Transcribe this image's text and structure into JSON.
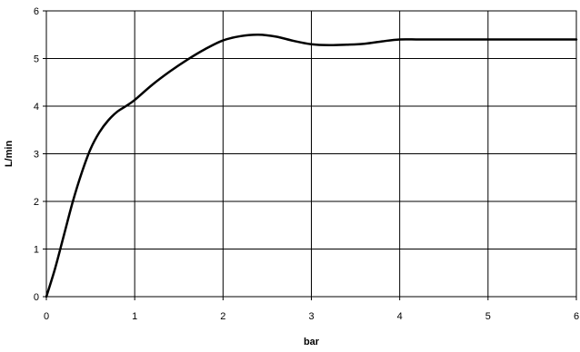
{
  "chart_data": {
    "type": "line",
    "title": "",
    "xlabel": "bar",
    "ylabel": "L/min",
    "xlim": [
      0,
      6
    ],
    "ylim": [
      0,
      6
    ],
    "xticks": [
      "0",
      "1",
      "2",
      "3",
      "4",
      "5",
      "6"
    ],
    "yticks": [
      "0",
      "1",
      "2",
      "3",
      "4",
      "5",
      "6"
    ],
    "grid": true,
    "legend": "none",
    "series": [
      {
        "color": "#000000",
        "x": [
          0,
          0.1,
          0.2,
          0.3,
          0.4,
          0.5,
          0.6,
          0.7,
          0.8,
          0.9,
          1.0,
          1.2,
          1.4,
          1.6,
          1.8,
          2.0,
          2.2,
          2.4,
          2.6,
          2.8,
          3.0,
          3.2,
          3.4,
          3.6,
          3.8,
          4.0,
          4.2,
          4.4,
          4.6,
          5.0,
          5.5,
          6.0
        ],
        "y": [
          0,
          0.6,
          1.3,
          2.0,
          2.6,
          3.1,
          3.45,
          3.7,
          3.88,
          4.0,
          4.13,
          4.45,
          4.73,
          4.98,
          5.2,
          5.38,
          5.47,
          5.5,
          5.46,
          5.37,
          5.3,
          5.28,
          5.29,
          5.31,
          5.36,
          5.4,
          5.4,
          5.4,
          5.4,
          5.4,
          5.4,
          5.4
        ]
      }
    ]
  }
}
